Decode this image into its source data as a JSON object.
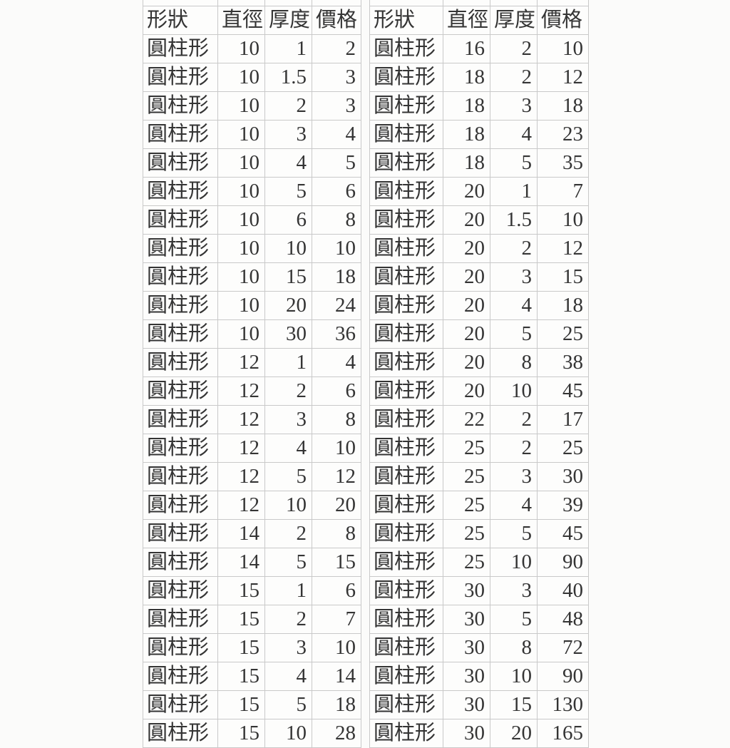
{
  "colors": {
    "background": "#fbfbfa",
    "gridline": "#c9c9c9",
    "text": "#343434"
  },
  "tables": [
    {
      "name": "price-table-left",
      "headers": [
        "形狀",
        "直徑",
        "厚度",
        "價格"
      ],
      "rows": [
        [
          "圓柱形",
          "10",
          "1",
          "2"
        ],
        [
          "圓柱形",
          "10",
          "1.5",
          "3"
        ],
        [
          "圓柱形",
          "10",
          "2",
          "3"
        ],
        [
          "圓柱形",
          "10",
          "3",
          "4"
        ],
        [
          "圓柱形",
          "10",
          "4",
          "5"
        ],
        [
          "圓柱形",
          "10",
          "5",
          "6"
        ],
        [
          "圓柱形",
          "10",
          "6",
          "8"
        ],
        [
          "圓柱形",
          "10",
          "10",
          "10"
        ],
        [
          "圓柱形",
          "10",
          "15",
          "18"
        ],
        [
          "圓柱形",
          "10",
          "20",
          "24"
        ],
        [
          "圓柱形",
          "10",
          "30",
          "36"
        ],
        [
          "圓柱形",
          "12",
          "1",
          "4"
        ],
        [
          "圓柱形",
          "12",
          "2",
          "6"
        ],
        [
          "圓柱形",
          "12",
          "3",
          "8"
        ],
        [
          "圓柱形",
          "12",
          "4",
          "10"
        ],
        [
          "圓柱形",
          "12",
          "5",
          "12"
        ],
        [
          "圓柱形",
          "12",
          "10",
          "20"
        ],
        [
          "圓柱形",
          "14",
          "2",
          "8"
        ],
        [
          "圓柱形",
          "14",
          "5",
          "15"
        ],
        [
          "圓柱形",
          "15",
          "1",
          "6"
        ],
        [
          "圓柱形",
          "15",
          "2",
          "7"
        ],
        [
          "圓柱形",
          "15",
          "3",
          "10"
        ],
        [
          "圓柱形",
          "15",
          "4",
          "14"
        ],
        [
          "圓柱形",
          "15",
          "5",
          "18"
        ],
        [
          "圓柱形",
          "15",
          "10",
          "28"
        ]
      ]
    },
    {
      "name": "price-table-right",
      "headers": [
        "形狀",
        "直徑",
        "厚度",
        "價格"
      ],
      "rows": [
        [
          "圓柱形",
          "16",
          "2",
          "10"
        ],
        [
          "圓柱形",
          "18",
          "2",
          "12"
        ],
        [
          "圓柱形",
          "18",
          "3",
          "18"
        ],
        [
          "圓柱形",
          "18",
          "4",
          "23"
        ],
        [
          "圓柱形",
          "18",
          "5",
          "35"
        ],
        [
          "圓柱形",
          "20",
          "1",
          "7"
        ],
        [
          "圓柱形",
          "20",
          "1.5",
          "10"
        ],
        [
          "圓柱形",
          "20",
          "2",
          "12"
        ],
        [
          "圓柱形",
          "20",
          "3",
          "15"
        ],
        [
          "圓柱形",
          "20",
          "4",
          "18"
        ],
        [
          "圓柱形",
          "20",
          "5",
          "25"
        ],
        [
          "圓柱形",
          "20",
          "8",
          "38"
        ],
        [
          "圓柱形",
          "20",
          "10",
          "45"
        ],
        [
          "圓柱形",
          "22",
          "2",
          "17"
        ],
        [
          "圓柱形",
          "25",
          "2",
          "25"
        ],
        [
          "圓柱形",
          "25",
          "3",
          "30"
        ],
        [
          "圓柱形",
          "25",
          "4",
          "39"
        ],
        [
          "圓柱形",
          "25",
          "5",
          "45"
        ],
        [
          "圓柱形",
          "25",
          "10",
          "90"
        ],
        [
          "圓柱形",
          "30",
          "3",
          "40"
        ],
        [
          "圓柱形",
          "30",
          "5",
          "48"
        ],
        [
          "圓柱形",
          "30",
          "8",
          "72"
        ],
        [
          "圓柱形",
          "30",
          "10",
          "90"
        ],
        [
          "圓柱形",
          "30",
          "15",
          "130"
        ],
        [
          "圓柱形",
          "30",
          "20",
          "165"
        ]
      ]
    }
  ]
}
